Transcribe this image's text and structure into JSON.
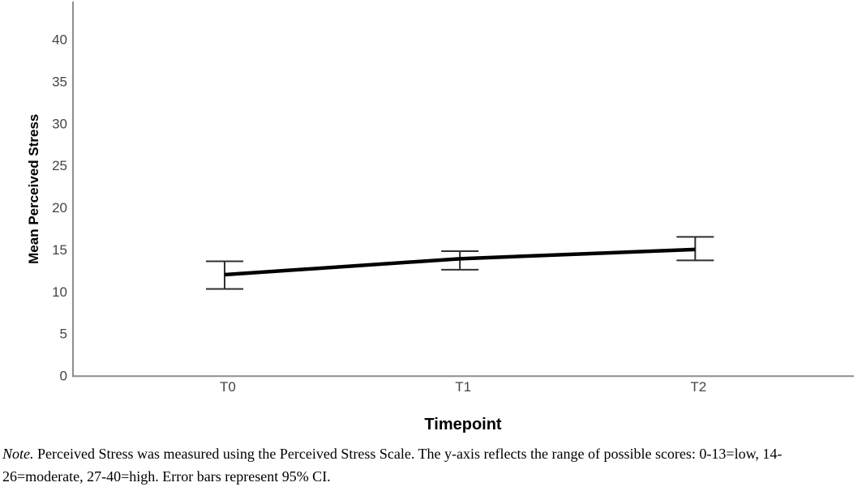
{
  "chart_data": {
    "type": "line",
    "title": "",
    "xlabel": "Timepoint",
    "ylabel": "Mean Perceived Stress",
    "categories": [
      "T0",
      "T1",
      "T2"
    ],
    "series": [
      {
        "name": "Mean Perceived Stress",
        "values": [
          12.0,
          13.9,
          15.0
        ],
        "ci_low": [
          10.3,
          12.6,
          13.7
        ],
        "ci_high": [
          13.6,
          14.8,
          16.5
        ]
      }
    ],
    "yticks": [
      0,
      5,
      10,
      15,
      20,
      25,
      30,
      35,
      40
    ],
    "ylim": [
      0,
      44.4
    ],
    "grid": false,
    "legend": "none",
    "error_bars": "95% CI"
  },
  "note": {
    "prefix": "Note.",
    "body": " Perceived Stress was measured using the Perceived Stress Scale. The y-axis reflects the range of possible scores: 0-13=low, 14-26=moderate, 27-40=high. Error bars represent 95% CI."
  },
  "colors": {
    "background": "#ffffff",
    "axis": "#8e8e8e",
    "tick_text": "#454545",
    "title_text": "#000000",
    "series_line": "#000000",
    "error_bar": "#2f2f2f"
  }
}
